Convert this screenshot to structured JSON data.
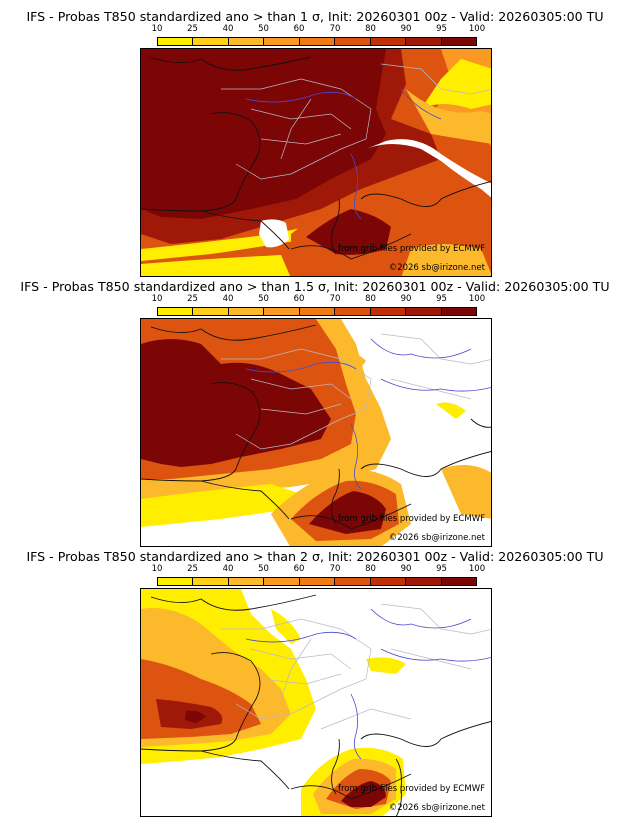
{
  "colors": {
    "bins": [
      "#ffee00",
      "#fed01c",
      "#fdb92c",
      "#fa9a22",
      "#f07a14",
      "#dd5410",
      "#c23008",
      "#a01808",
      "#7c0606"
    ],
    "coast": "#111111",
    "borders": "#b9b9c4",
    "rivers": "#4a4acb"
  },
  "legend_ticks": [
    "10",
    "25",
    "40",
    "50",
    "60",
    "70",
    "80",
    "90",
    "95",
    "100"
  ],
  "credits": {
    "source": "from grib files provided by ECMWF",
    "copyright": "©2026 sb@irizone.net"
  },
  "panels": [
    {
      "title": "IFS - Probas T850  standardized ano > than 1 σ, Init: 20260301 00z - Valid: 20260305:00 TU"
    },
    {
      "title": "IFS - Probas T850  standardized ano > than 1.5 σ, Init: 20260301 00z - Valid: 20260305:00 TU"
    },
    {
      "title": "IFS - Probas T850  standardized ano > than 2 σ, Init: 20260301 00z - Valid: 20260305:00 TU"
    }
  ]
}
